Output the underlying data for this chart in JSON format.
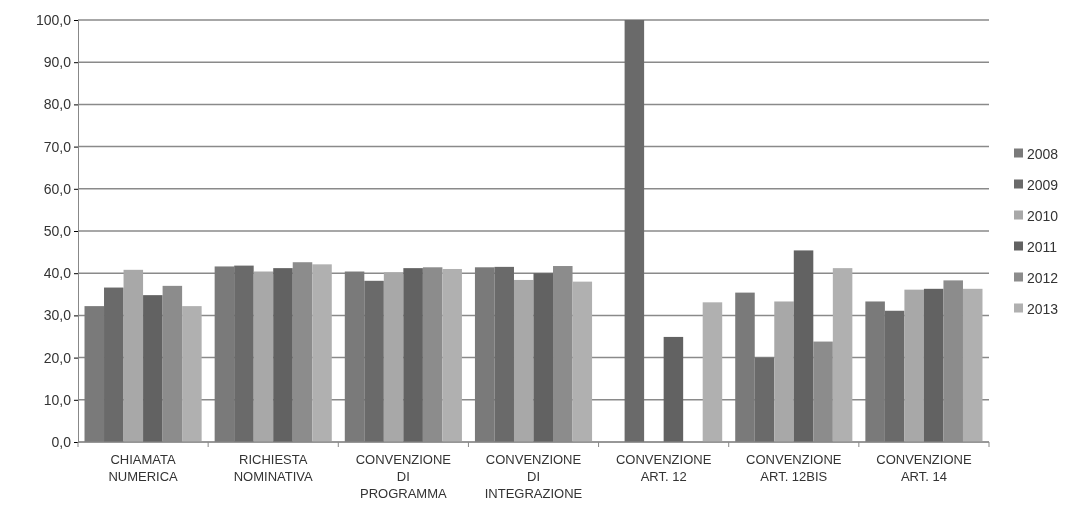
{
  "chart_data": {
    "type": "bar",
    "categories": [
      "CHIAMATA\nNUMERICA",
      "RICHIESTA\nNOMINATIVA",
      "CONVENZIONE\nDI\nPROGRAMMA",
      "CONVENZIONE\nDI\nINTEGRAZIONE",
      "CONVENZIONE\nART. 12",
      "CONVENZIONE\nART. 12BIS",
      "CONVENZIONE\nART. 14"
    ],
    "series": [
      {
        "name": "2008",
        "color": "#7a7a7a",
        "values": [
          32.2,
          41.6,
          40.4,
          41.4,
          null,
          35.4,
          33.3
        ]
      },
      {
        "name": "2009",
        "color": "#6a6a6a",
        "values": [
          36.6,
          41.8,
          38.2,
          41.5,
          100,
          20,
          31.1
        ]
      },
      {
        "name": "2010",
        "color": "#a8a8a8",
        "values": [
          40.8,
          40.4,
          40.2,
          38.4,
          null,
          33.3,
          36.1
        ]
      },
      {
        "name": "2011",
        "color": "#626262",
        "values": [
          34.8,
          41.2,
          41.2,
          40,
          24.9,
          45.4,
          36.3
        ]
      },
      {
        "name": "2012",
        "color": "#8c8c8c",
        "values": [
          37,
          42.6,
          41.4,
          41.7,
          null,
          23.8,
          38.3
        ]
      },
      {
        "name": "2013",
        "color": "#b0b0b0",
        "values": [
          32.2,
          42.1,
          41,
          38,
          33.1,
          41.2,
          36.3
        ]
      }
    ],
    "ylim": [
      0,
      100
    ],
    "yticks": [
      {
        "value": 0,
        "label": "0,0"
      },
      {
        "value": 10,
        "label": "10,0"
      },
      {
        "value": 20,
        "label": "20,0"
      },
      {
        "value": 30,
        "label": "30,0"
      },
      {
        "value": 40,
        "label": "40,0"
      },
      {
        "value": 50,
        "label": "50,0"
      },
      {
        "value": 60,
        "label": "60,0"
      },
      {
        "value": 70,
        "label": "70,0"
      },
      {
        "value": 80,
        "label": "80,0"
      },
      {
        "value": 90,
        "label": "90,0"
      },
      {
        "value": 100,
        "label": "100,0"
      }
    ],
    "grid": "y",
    "legend": "right"
  }
}
